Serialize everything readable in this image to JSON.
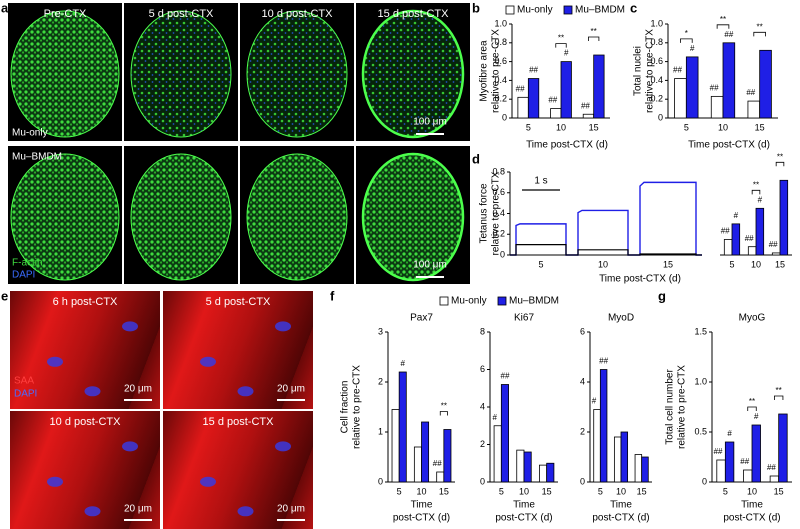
{
  "image_panels": [
    {
      "letter": "a",
      "titles": [
        "Pre-CTX",
        "5 d post-CTX",
        "10 d post-CTX",
        "15 d post-CTX"
      ],
      "rows": [
        "Mu-only",
        "Mu–BMDM"
      ],
      "scale_bar": "100 μm",
      "stains": [
        "F-actin",
        "DAPI"
      ]
    },
    {
      "letter": "e",
      "titles": [
        "6 h post-CTX",
        "5 d post-CTX",
        "10 d post-CTX",
        "15 d post-CTX"
      ],
      "scale_bar": "20 μm",
      "stains": [
        "SAA",
        "DAPI"
      ]
    }
  ],
  "chart_data": [
    {
      "type": "bar",
      "panel": "b",
      "ylabel": [
        "Myofibre area",
        "relative to pre-CTX"
      ],
      "xlabel": "Time post-CTX (d)",
      "legend": "top",
      "categories": [
        "5",
        "10",
        "15"
      ],
      "series": [
        {
          "name": "Mu-only",
          "color": "#ffffff",
          "values": [
            0.22,
            0.1,
            0.04
          ],
          "marks": [
            "##",
            "##",
            "##"
          ]
        },
        {
          "name": "Mu–BMDM",
          "color": "#1f1fe6",
          "values": [
            0.42,
            0.6,
            0.67
          ],
          "marks": [
            "##",
            "#",
            null
          ]
        }
      ],
      "comparisons": [
        null,
        "**",
        "**"
      ],
      "ylim": [
        0,
        1
      ],
      "yticks": [
        0,
        0.2,
        0.4,
        0.6,
        0.8,
        {
          "value": 1,
          "label": "1.0"
        }
      ]
    },
    {
      "type": "bar",
      "panel": "c",
      "ylabel": [
        "Total nuclei",
        "relative to pre-CTX"
      ],
      "xlabel": "Time post-CTX (d)",
      "categories": [
        "5",
        "10",
        "15"
      ],
      "series": [
        {
          "color": "#ffffff",
          "values": [
            0.42,
            0.23,
            0.18
          ],
          "marks": [
            "##",
            "##",
            "##"
          ]
        },
        {
          "color": "#1f1fe6",
          "values": [
            0.65,
            0.8,
            0.72
          ],
          "marks": [
            "#",
            "##",
            null
          ]
        }
      ],
      "comparisons": [
        "*",
        "**",
        "**"
      ],
      "ylim": [
        0,
        1
      ],
      "yticks": [
        0,
        0.2,
        0.4,
        0.6,
        0.8,
        {
          "value": 1,
          "label": "1.0"
        }
      ]
    },
    {
      "type": "bar",
      "panel": "d",
      "ylabel": [
        "Tetanus force",
        "relative to pre-CTX"
      ],
      "xlabel": "Time post-CTX (d)",
      "trace_labels": [
        "5",
        "10",
        "15"
      ],
      "scale_bar": "1 s",
      "categories": [
        "5",
        "10",
        "15"
      ],
      "series": [
        {
          "color": "#ffffff",
          "values": [
            0.15,
            0.08,
            0.02
          ],
          "marks": [
            "##",
            "##",
            "##"
          ]
        },
        {
          "color": "#1f1fe6",
          "values": [
            0.3,
            0.45,
            0.72
          ],
          "marks": [
            "#",
            "#",
            null
          ]
        }
      ],
      "comparisons": [
        null,
        "**",
        "**"
      ],
      "ylim": [
        0,
        0.8
      ],
      "yticks": [
        0,
        0.2,
        0.4,
        0.6,
        0.8
      ]
    },
    {
      "type": "bar",
      "panel": "f",
      "ylabel": [
        "Cell fraction",
        "relative to pre-CTX"
      ],
      "xlabel": [
        "Time",
        "post-CTX (d)"
      ],
      "legend": "top",
      "subplots": [
        {
          "title": "Pax7",
          "categories": [
            "5",
            "10",
            "15"
          ],
          "series": [
            {
              "name": "Mu-only",
              "color": "#ffffff",
              "values": [
                1.45,
                0.7,
                0.2
              ],
              "marks": [
                null,
                null,
                "##"
              ]
            },
            {
              "name": "Mu–BMDM",
              "color": "#1f1fe6",
              "values": [
                2.2,
                1.2,
                1.05
              ],
              "marks": [
                "#",
                null,
                null
              ]
            }
          ],
          "comparisons": [
            null,
            null,
            "**"
          ],
          "ylim": [
            0,
            3
          ],
          "yticks": [
            0,
            1,
            2,
            3
          ]
        },
        {
          "title": "Ki67",
          "categories": [
            "5",
            "10",
            "15"
          ],
          "series": [
            {
              "color": "#ffffff",
              "values": [
                3.0,
                1.7,
                0.9
              ],
              "marks": [
                "#",
                null,
                null
              ]
            },
            {
              "color": "#1f1fe6",
              "values": [
                5.2,
                1.6,
                1.0
              ],
              "marks": [
                "##",
                null,
                null
              ]
            }
          ],
          "ylim": [
            0,
            8
          ],
          "yticks": [
            0,
            2,
            4,
            6,
            8
          ]
        },
        {
          "title": "MyoD",
          "categories": [
            "5",
            "10",
            "15"
          ],
          "series": [
            {
              "color": "#ffffff",
              "values": [
                2.9,
                1.8,
                1.1
              ],
              "marks": [
                "#",
                null,
                null
              ]
            },
            {
              "color": "#1f1fe6",
              "values": [
                4.5,
                2.0,
                1.0
              ],
              "marks": [
                "##",
                null,
                null
              ]
            }
          ],
          "ylim": [
            0,
            6
          ],
          "yticks": [
            0,
            2,
            4,
            6
          ]
        }
      ]
    },
    {
      "type": "bar",
      "panel": "g",
      "title": "MyoG",
      "ylabel": [
        "Total cell number",
        "relative to pre-CTX"
      ],
      "xlabel": [
        "Time",
        "post-CTX (d)"
      ],
      "categories": [
        "5",
        "10",
        "15"
      ],
      "series": [
        {
          "color": "#ffffff",
          "values": [
            0.22,
            0.12,
            0.06
          ],
          "marks": [
            "##",
            "##",
            "##"
          ]
        },
        {
          "color": "#1f1fe6",
          "values": [
            0.4,
            0.57,
            0.68
          ],
          "marks": [
            "#",
            "#",
            null
          ]
        }
      ],
      "comparisons": [
        null,
        "**",
        "**"
      ],
      "ylim": [
        0,
        1.5
      ],
      "yticks": [
        0,
        0.5,
        {
          "value": 1,
          "label": "1.0"
        },
        1.5
      ]
    }
  ]
}
